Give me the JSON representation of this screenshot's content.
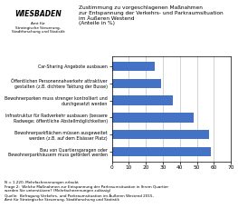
{
  "chart_data": {
    "type": "bar",
    "orientation": "horizontal",
    "title": "Zustimmung zu vorgeschlagenen Maßnahmen\nzur Entspannung der Verkehrs- und Parkraumsituation\nim Äußeren Westend\n(Anteile in %)",
    "categories": [
      "Bau von Quartiersgaragen oder\nBewohnerparkhäusern muss gefördert werden",
      "Bewohnerparkflächen müssen ausgeweitet\nwerden (z.B. auf dem Elsässer Platz)",
      "Infrastruktur für Radverkehr ausbauen (bessere\nRadwege; öffentliche Abstellmöglichkeiten)",
      "Bewohnerparken muss strenger kontrolliert und\ndurchgesetzt werden",
      "Öffentlichen Personennahverkehr attraktiver\ngestalten (z.B. dichtere Taktung der Busse)",
      "Car-Sharing Angebote ausbauen"
    ],
    "values": [
      58,
      57,
      48,
      36,
      29,
      25
    ],
    "color": "#4472C4",
    "xlim": [
      0,
      70
    ],
    "xticks": [
      0,
      10,
      20,
      30,
      40,
      50,
      60,
      70
    ],
    "grid": true,
    "annotations": [
      "WIESBADEN",
      "Amt für\nStrategische Steuerung,\nStadtforschung und Statistik",
      "N = 1.220, Mehrfachnennungen erlaubt\nFrage 2:  Welche Maßnahmen zur Entspannung der Parkraumsituation in Ihrem Quartier\nwerden Sie unterstützen? (Mehrfachnennungen zulässig)\nQuelle:  Befragung Verkehrs- und Parkraumsituation im Äußeren Westend 2015,\nAmt für Strategische Steuerung, Stadtforschung und Statistik"
    ]
  }
}
